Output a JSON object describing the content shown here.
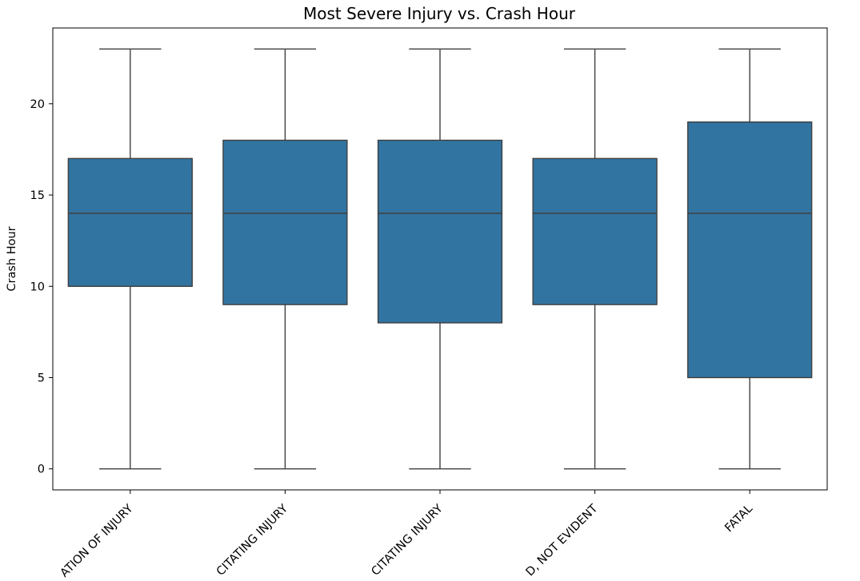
{
  "chart_data": {
    "type": "box",
    "title": "Most Severe Injury vs. Crash Hour",
    "xlabel": "",
    "ylabel": "Crash Hour",
    "ylim": [
      -1.15,
      24.15
    ],
    "yticks": [
      0,
      5,
      10,
      15,
      20
    ],
    "box_color": "#3274a1",
    "line_color": "#3f3f3f",
    "categories": [
      "ATION OF INJURY",
      "CITATING INJURY",
      "CITATING INJURY",
      "D, NOT EVIDENT",
      "FATAL"
    ],
    "boxes": [
      {
        "whislo": 0,
        "q1": 10,
        "med": 14,
        "q3": 17,
        "whishi": 23
      },
      {
        "whislo": 0,
        "q1": 9,
        "med": 14,
        "q3": 18,
        "whishi": 23
      },
      {
        "whislo": 0,
        "q1": 8,
        "med": 14,
        "q3": 18,
        "whishi": 23
      },
      {
        "whislo": 0,
        "q1": 9,
        "med": 14,
        "q3": 17,
        "whishi": 23
      },
      {
        "whislo": 0,
        "q1": 5,
        "med": 14,
        "q3": 19,
        "whishi": 23
      }
    ]
  }
}
